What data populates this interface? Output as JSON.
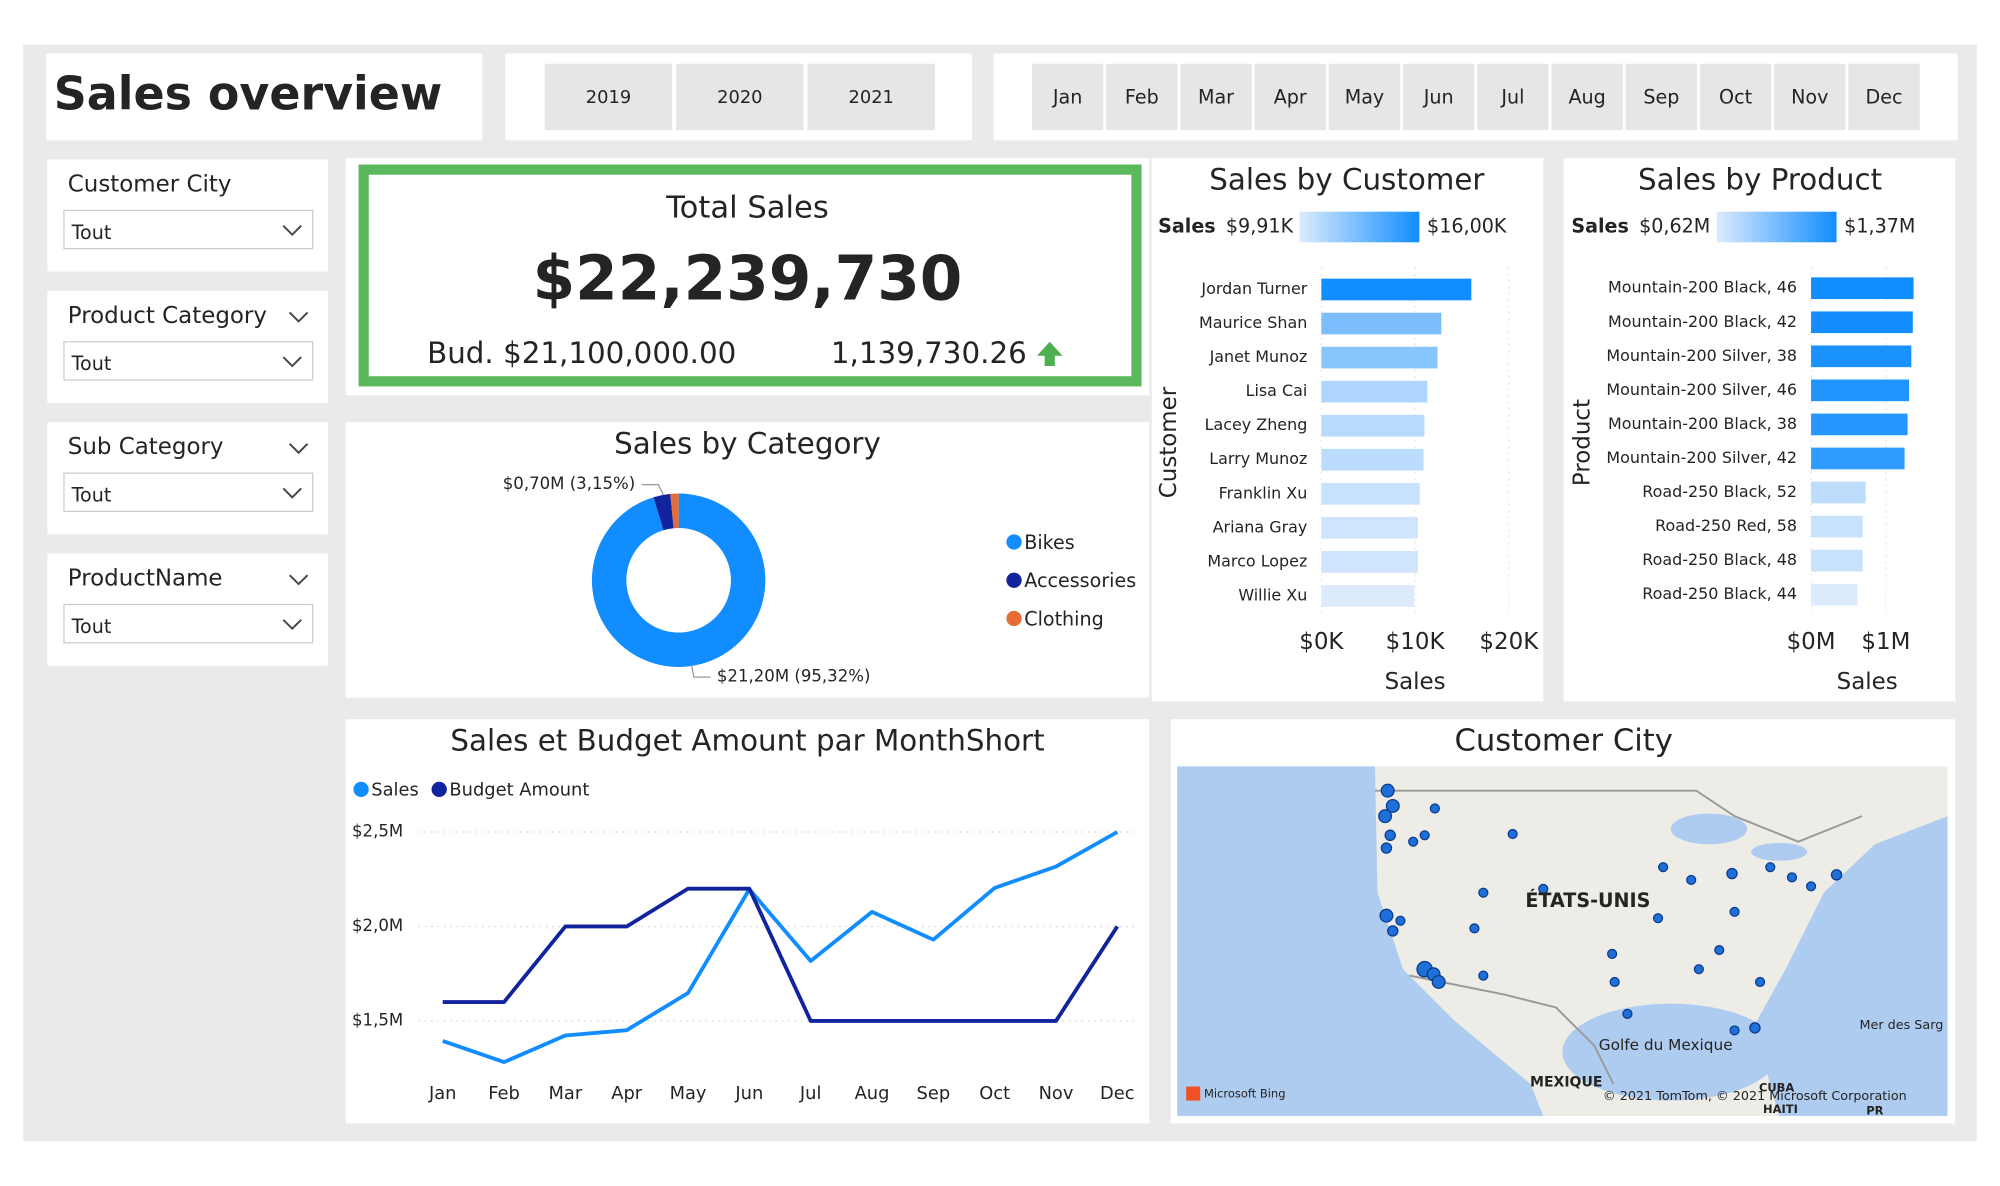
{
  "header": {
    "title": "Sales overview"
  },
  "years": [
    "2019",
    "2020",
    "2021"
  ],
  "months": [
    "Jan",
    "Feb",
    "Mar",
    "Apr",
    "May",
    "Jun",
    "Jul",
    "Aug",
    "Sep",
    "Oct",
    "Nov",
    "Dec"
  ],
  "filters": [
    {
      "label": "Customer City",
      "value": "Tout"
    },
    {
      "label": "Product Category",
      "value": "Tout"
    },
    {
      "label": "Sub Category",
      "value": "Tout"
    },
    {
      "label": "ProductName",
      "value": "Tout"
    }
  ],
  "kpi": {
    "title": "Total Sales",
    "value": "$22,239,730",
    "budget": "Bud. $21,100,000.00",
    "difference": "1,139,730.26"
  },
  "chart_data": [
    {
      "type": "donut",
      "title": "Sales by Category",
      "categories": [
        "Bikes",
        "Accessories",
        "Clothing"
      ],
      "values": [
        95.32,
        3.15,
        1.53
      ],
      "value_labels": [
        "$21,20M (95,32%)",
        "$0,70M (3,15%)",
        null
      ],
      "colors": [
        "#118dff",
        "#12239e",
        "#e66c37"
      ]
    },
    {
      "type": "line",
      "title": "Sales et Budget Amount par MonthShort",
      "categories": [
        "Jan",
        "Feb",
        "Mar",
        "Apr",
        "May",
        "Jun",
        "Jul",
        "Aug",
        "Sep",
        "Oct",
        "Nov",
        "Dec"
      ],
      "series": [
        {
          "name": "Sales",
          "color": "#118dff",
          "values": [
            1394000,
            1282000,
            1423000,
            1451000,
            1648000,
            2197000,
            1817000,
            2077000,
            1930000,
            2204000,
            2317000,
            2500000
          ]
        },
        {
          "name": "Budget Amount",
          "color": "#12239e",
          "values": [
            1600000,
            1600000,
            2000000,
            2000000,
            2200000,
            2200000,
            1500000,
            1500000,
            1500000,
            1500000,
            1500000,
            2000000
          ]
        }
      ],
      "ylim": [
        1200000,
        2550000
      ],
      "yticks": [
        {
          "value": 1500000,
          "label": "$1,5M"
        },
        {
          "value": 2000000,
          "label": "$2,0M"
        },
        {
          "value": 2500000,
          "label": "$2,5M"
        }
      ],
      "grid": true
    },
    {
      "type": "hbar",
      "title": "Sales by Customer",
      "x_label": "Sales",
      "y_label": "Customer",
      "categories": [
        "Jordan Turner",
        "Maurice Shan",
        "Janet Munoz",
        "Lisa Cai",
        "Lacey Zheng",
        "Larry Munoz",
        "Franklin Xu",
        "Ariana Gray",
        "Marco Lopez",
        "Willie Xu"
      ],
      "values": [
        16000,
        12800,
        12400,
        11300,
        11000,
        10900,
        10500,
        10300,
        10300,
        9910
      ],
      "xlim": [
        0,
        20000
      ],
      "xticks": [
        {
          "value": 0,
          "label": "$0K"
        },
        {
          "value": 10000,
          "label": "$10K"
        },
        {
          "value": 20000,
          "label": "$20K"
        }
      ],
      "color_scale": {
        "title": "Sales",
        "min": {
          "value": 9910,
          "label": "$9,91K"
        },
        "max": {
          "value": 16000,
          "label": "$16,00K"
        },
        "colors": [
          "#dcebfc",
          "#118dff"
        ]
      }
    },
    {
      "type": "hbar",
      "title": "Sales by Product",
      "x_label": "Sales",
      "y_label": "Product",
      "categories": [
        "Mountain-200 Black, 46",
        "Mountain-200 Black, 42",
        "Mountain-200 Silver, 38",
        "Mountain-200 Silver, 46",
        "Mountain-200 Black, 38",
        "Mountain-200 Silver, 42",
        "Road-250 Black, 52",
        "Road-250 Red, 58",
        "Road-250 Black, 48",
        "Road-250 Black, 44"
      ],
      "values": [
        1370000,
        1360000,
        1340000,
        1310000,
        1290000,
        1250000,
        730000,
        690000,
        690000,
        620000
      ],
      "xlim": [
        0,
        1500000
      ],
      "xticks": [
        {
          "value": 0,
          "label": "$0M"
        },
        {
          "value": 1000000,
          "label": "$1M"
        }
      ],
      "color_scale": {
        "title": "Sales",
        "min": {
          "value": 620000,
          "label": "$0,62M"
        },
        "max": {
          "value": 1370000,
          "label": "$1,37M"
        },
        "colors": [
          "#dcebfc",
          "#118dff"
        ]
      }
    }
  ],
  "map": {
    "title": "Customer City",
    "labels": [
      "ÉTATS-UNIS",
      "Golfe du Mexique",
      "MEXIQUE",
      "Mer des Sarg",
      "CUBA",
      "HAITI",
      "PR",
      "Microsoft Bing",
      "© 2021 TomTom, © 2021 Microsoft Corporation"
    ]
  }
}
